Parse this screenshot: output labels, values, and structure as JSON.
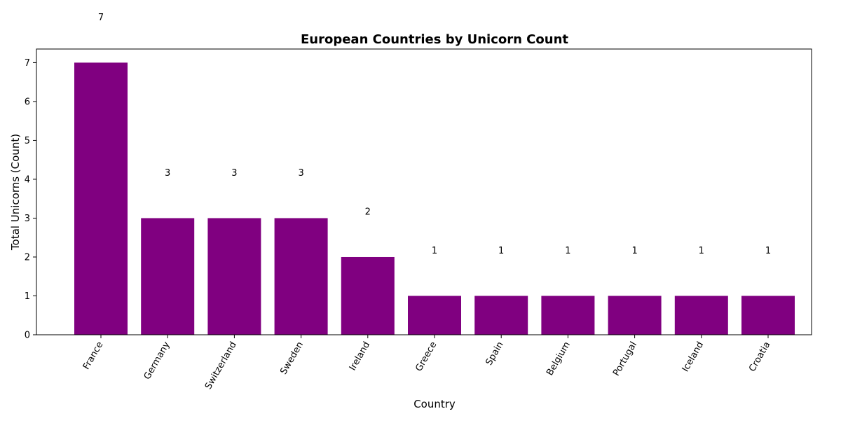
{
  "chart_data": {
    "type": "bar",
    "title": "European Countries by Unicorn Count",
    "xlabel": "Country",
    "ylabel": "Total Unicorns (Count)",
    "categories": [
      "France",
      "Germany",
      "Switzerland",
      "Sweden",
      "Ireland",
      "Greece",
      "Spain",
      "Belgium",
      "Portugal",
      "Iceland",
      "Croatia"
    ],
    "values": [
      7,
      3,
      3,
      3,
      2,
      1,
      1,
      1,
      1,
      1,
      1
    ],
    "data_labels": [
      "7",
      "3",
      "3",
      "3",
      "2",
      "1",
      "1",
      "1",
      "1",
      "1",
      "1"
    ],
    "yticks": [
      0,
      1,
      2,
      3,
      4,
      5,
      6,
      7
    ],
    "ylim": [
      0,
      7.35
    ],
    "bar_color": "#800080",
    "grid": false,
    "legend": "none",
    "x_tick_rotation": "60 degrees"
  }
}
